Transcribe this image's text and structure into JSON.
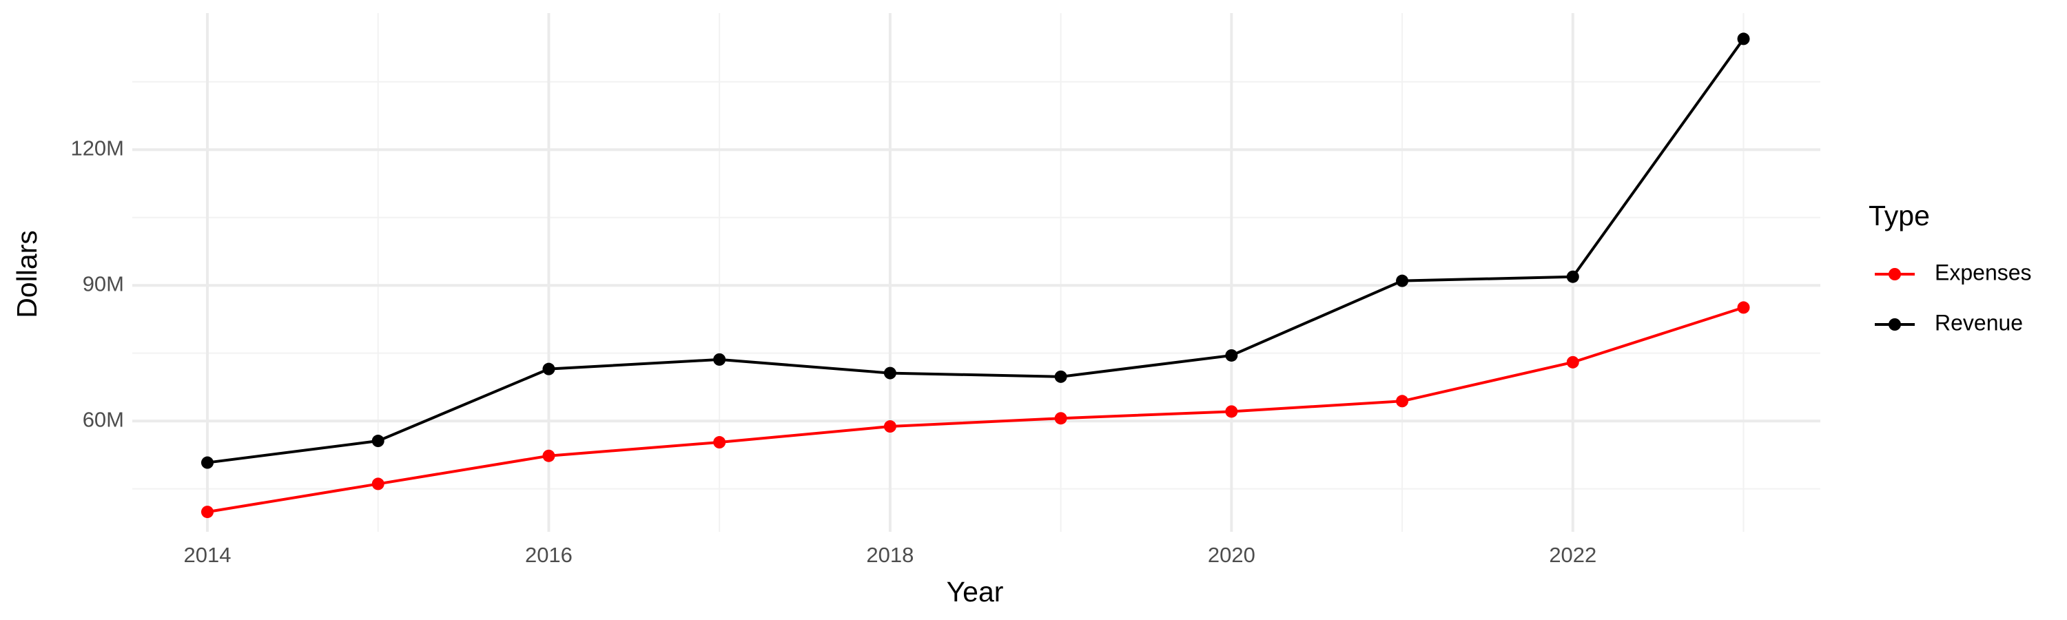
{
  "chart_data": {
    "type": "line",
    "x_label": "Year",
    "y_label": "Dollars",
    "x": [
      2014,
      2015,
      2016,
      2017,
      2018,
      2019,
      2020,
      2021,
      2022,
      2023
    ],
    "series": [
      {
        "name": "Expenses",
        "color": "#ff0000",
        "values": [
          39900000,
          46100000,
          52300000,
          55300000,
          58800000,
          60600000,
          62100000,
          64400000,
          73000000,
          85100000
        ]
      },
      {
        "name": "Revenue",
        "color": "#000000",
        "values": [
          50800000,
          55600000,
          71500000,
          73600000,
          70600000,
          69800000,
          74500000,
          91000000,
          91900000,
          144500000
        ]
      }
    ],
    "xlim": [
      2013.56,
      2023.45
    ],
    "xticks": [
      2014,
      2016,
      2018,
      2020,
      2022
    ],
    "x_minor_ticks": [
      2015,
      2017,
      2019,
      2021,
      2023
    ],
    "ylim": [
      35500000,
      150200000
    ],
    "yticks": [
      {
        "value": 60000000,
        "label": "60M"
      },
      {
        "value": 90000000,
        "label": "90M"
      },
      {
        "value": 120000000,
        "label": "120M"
      }
    ],
    "y_minor_ticks": [
      45000000,
      75000000,
      105000000,
      135000000
    ],
    "grid": true,
    "legend_title": "Type",
    "legend": "right"
  }
}
